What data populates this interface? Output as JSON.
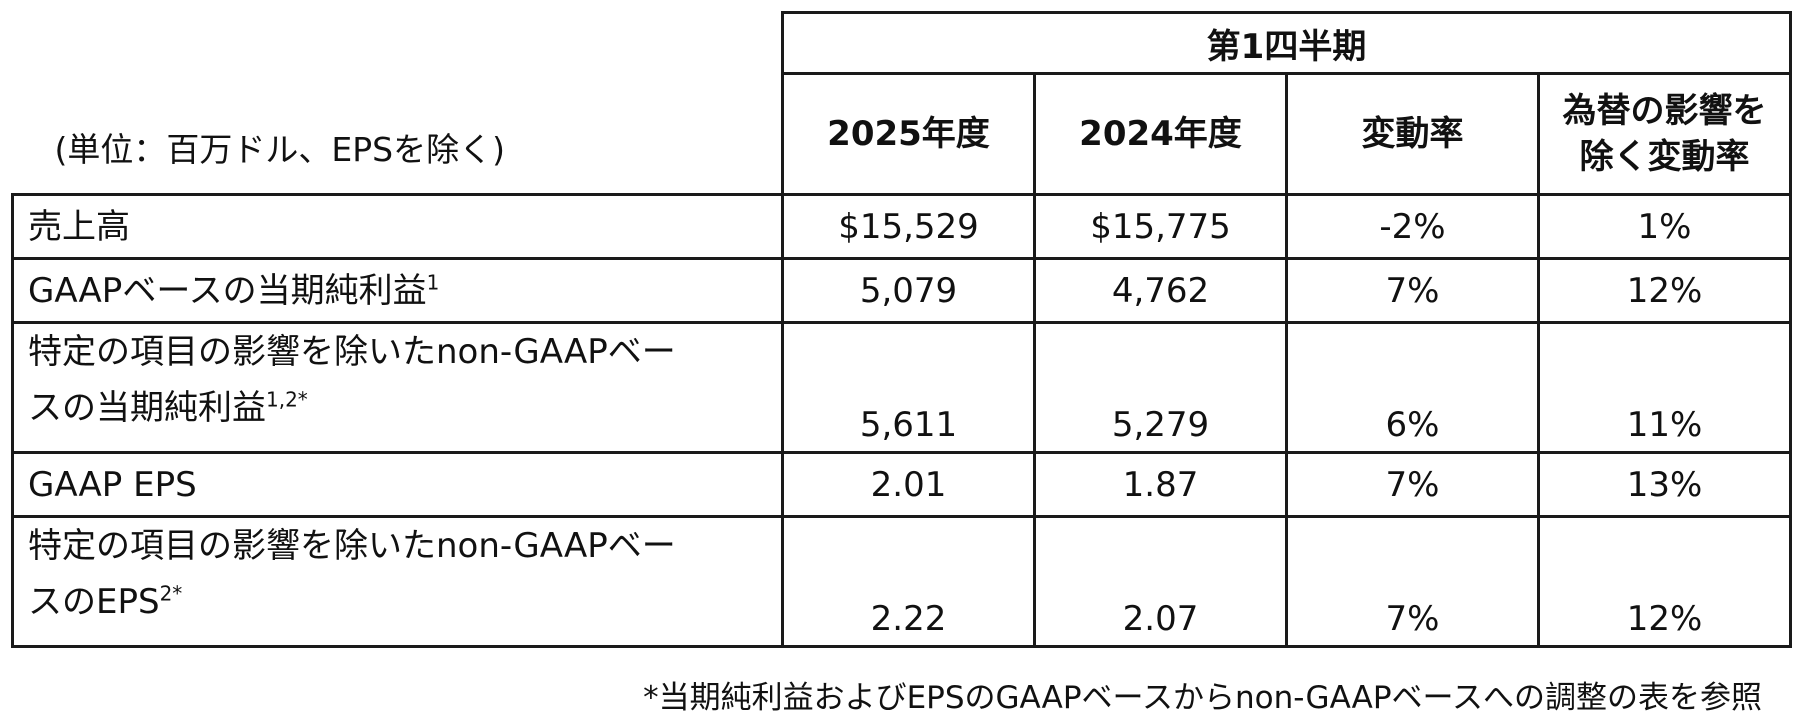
{
  "unit_note": "(単位：百万ドル、EPSを除く)",
  "period_header": "第1四半期",
  "columns": [
    "2025年度",
    "2024年度",
    "変動率",
    "為替の影響を除く変動率"
  ],
  "columns_lines": [
    [
      "2025年度"
    ],
    [
      "2024年度"
    ],
    [
      "変動率"
    ],
    [
      "為替の影響を",
      "除く変動率"
    ]
  ],
  "rows": [
    {
      "label": "売上高",
      "sup": "",
      "values": [
        "$15,529",
        "$15,775",
        "-2%",
        "1%"
      ]
    },
    {
      "label": "GAAPベースの当期純利益",
      "sup": "1",
      "values": [
        "5,079",
        "4,762",
        "7%",
        "12%"
      ]
    },
    {
      "label_lines": [
        "特定の項目の影響を除いたnon-GAAPベー",
        "スの当期純利益"
      ],
      "sup": "1,2*",
      "values": [
        "5,611",
        "5,279",
        "6%",
        "11%"
      ]
    },
    {
      "label": "GAAP EPS",
      "sup": "",
      "values": [
        "2.01",
        "1.87",
        "7%",
        "13%"
      ]
    },
    {
      "label_lines": [
        "特定の項目の影響を除いたnon-GAAPベー",
        "スのEPS"
      ],
      "sup": "2*",
      "values": [
        "2.22",
        "2.07",
        "7%",
        "12%"
      ]
    }
  ],
  "footnote": "*当期純利益およびEPSのGAAPベースからnon-GAAPベースへの調整の表を参照"
}
